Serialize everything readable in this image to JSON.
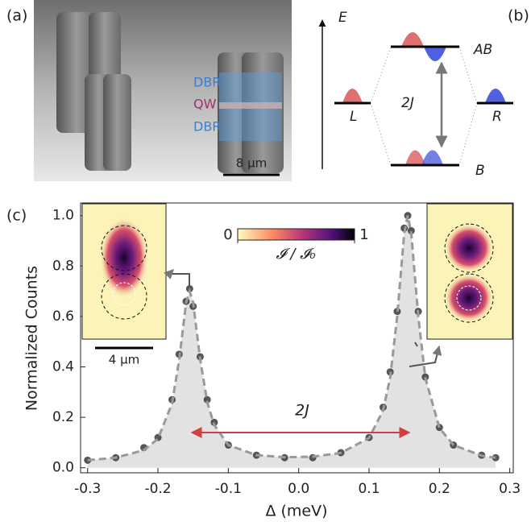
{
  "panel_a": {
    "label": "(a)",
    "layers": [
      "DBR",
      "QW",
      "DBR"
    ],
    "scale_bar": "8 µm"
  },
  "panel_b": {
    "label": "(b)",
    "axis": "E",
    "upper_level": "AB",
    "lower_level": "B",
    "left_level": "L",
    "right_level": "R",
    "splitting": "2J"
  },
  "chart_data": {
    "type": "scatter",
    "panel_label": "(c)",
    "xlabel": "Δ (meV)",
    "ylabel": "Normalized Counts",
    "x": [
      -0.3,
      -0.26,
      -0.22,
      -0.2,
      -0.18,
      -0.17,
      -0.16,
      -0.155,
      -0.15,
      -0.14,
      -0.13,
      -0.12,
      -0.1,
      -0.06,
      -0.02,
      0.02,
      0.06,
      0.1,
      0.12,
      0.13,
      0.14,
      0.15,
      0.155,
      0.16,
      0.17,
      0.18,
      0.2,
      0.22,
      0.26,
      0.28
    ],
    "series": [
      {
        "color": "#444444",
        "marker": "circle",
        "values": [
          0.03,
          0.04,
          0.08,
          0.12,
          0.27,
          0.45,
          0.66,
          0.71,
          0.64,
          0.44,
          0.27,
          0.18,
          0.09,
          0.05,
          0.04,
          0.04,
          0.06,
          0.12,
          0.24,
          0.38,
          0.62,
          0.95,
          1.0,
          0.94,
          0.62,
          0.36,
          0.16,
          0.09,
          0.05,
          0.04
        ]
      },
      {
        "color": "#999999",
        "line_style": "dashed",
        "area_fill": "#e2e2e2",
        "values": [
          0.03,
          0.04,
          0.07,
          0.115,
          0.255,
          0.425,
          0.655,
          0.7,
          0.655,
          0.43,
          0.26,
          0.17,
          0.09,
          0.05,
          0.042,
          0.044,
          0.059,
          0.118,
          0.228,
          0.357,
          0.6,
          0.93,
          1.0,
          0.93,
          0.6,
          0.357,
          0.158,
          0.09,
          0.048,
          0.04
        ]
      }
    ],
    "xlim": [
      -0.31,
      0.305
    ],
    "ylim": [
      -0.02,
      1.05
    ],
    "xticks": [
      -0.3,
      -0.2,
      -0.1,
      {
        "value": 0,
        "label": "0.0"
      },
      0.1,
      0.2,
      0.3
    ],
    "yticks": [
      {
        "value": 0,
        "label": "0.0"
      },
      0.2,
      0.4,
      0.6,
      0.8,
      {
        "value": 1,
        "label": "1.0"
      }
    ],
    "annotation": "2J",
    "colorbar": {
      "ticks": [
        0,
        1
      ],
      "label": "𝓘 / 𝓘₀"
    },
    "inset_scale_bar": "4 µm"
  }
}
